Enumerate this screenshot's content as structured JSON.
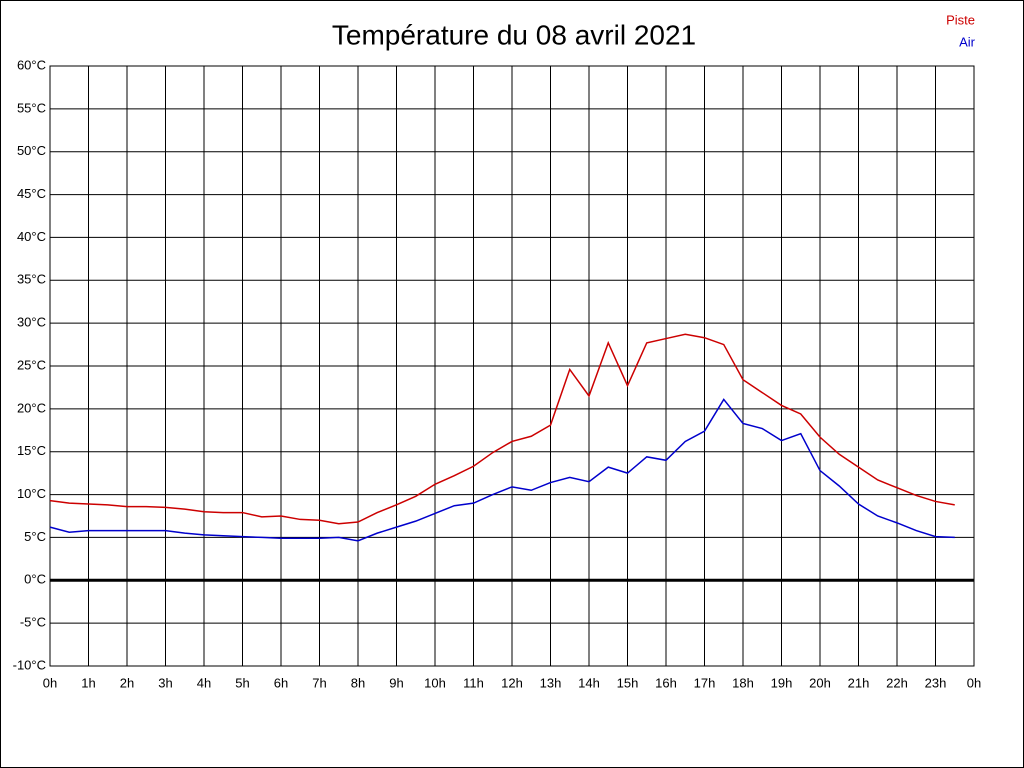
{
  "chart_data": {
    "type": "line",
    "title": "Température du 08 avril 2021",
    "x": [
      0,
      0.5,
      1,
      1.5,
      2,
      2.5,
      3,
      3.5,
      4,
      4.5,
      5,
      5.5,
      6,
      6.5,
      7,
      7.5,
      8,
      8.5,
      9,
      9.5,
      10,
      10.5,
      11,
      11.5,
      12,
      12.5,
      13,
      13.5,
      14,
      14.5,
      15,
      15.5,
      16,
      16.5,
      17,
      17.5,
      18,
      18.5,
      19,
      19.5,
      20,
      20.5,
      21,
      21.5,
      22,
      22.5,
      23,
      23.5
    ],
    "series": [
      {
        "name": "Piste",
        "color": "#cc0000",
        "values": [
          9.3,
          9.0,
          8.9,
          8.8,
          8.6,
          8.6,
          8.5,
          8.3,
          8.0,
          7.9,
          7.9,
          7.4,
          7.5,
          7.1,
          7.0,
          6.6,
          6.8,
          7.9,
          8.8,
          9.8,
          11.2,
          12.2,
          13.3,
          14.9,
          16.2,
          16.8,
          18.1,
          24.6,
          21.5,
          27.7,
          22.7,
          27.7,
          28.2,
          28.7,
          28.3,
          27.5,
          23.4,
          21.9,
          20.4,
          19.4,
          16.7,
          14.7,
          13.2,
          11.7,
          10.8,
          9.9,
          9.2,
          8.8
        ]
      },
      {
        "name": "Air",
        "color": "#0000cc",
        "values": [
          6.2,
          5.6,
          5.8,
          5.8,
          5.8,
          5.8,
          5.8,
          5.5,
          5.3,
          5.2,
          5.1,
          5.0,
          4.9,
          4.9,
          4.9,
          5.0,
          4.6,
          5.5,
          6.2,
          6.9,
          7.8,
          8.7,
          9.0,
          10.0,
          10.9,
          10.5,
          11.4,
          12.0,
          11.5,
          13.2,
          12.5,
          14.4,
          14.0,
          16.2,
          17.4,
          21.1,
          18.3,
          17.7,
          16.3,
          17.1,
          12.8,
          11.0,
          8.9,
          7.5,
          6.7,
          5.8,
          5.1,
          5.0
        ]
      }
    ],
    "xlim": [
      0,
      24
    ],
    "xticks": [
      {
        "value": 0,
        "label": "0h"
      },
      {
        "value": 1,
        "label": "1h"
      },
      {
        "value": 2,
        "label": "2h"
      },
      {
        "value": 3,
        "label": "3h"
      },
      {
        "value": 4,
        "label": "4h"
      },
      {
        "value": 5,
        "label": "5h"
      },
      {
        "value": 6,
        "label": "6h"
      },
      {
        "value": 7,
        "label": "7h"
      },
      {
        "value": 8,
        "label": "8h"
      },
      {
        "value": 9,
        "label": "9h"
      },
      {
        "value": 10,
        "label": "10h"
      },
      {
        "value": 11,
        "label": "11h"
      },
      {
        "value": 12,
        "label": "12h"
      },
      {
        "value": 13,
        "label": "13h"
      },
      {
        "value": 14,
        "label": "14h"
      },
      {
        "value": 15,
        "label": "15h"
      },
      {
        "value": 16,
        "label": "16h"
      },
      {
        "value": 17,
        "label": "17h"
      },
      {
        "value": 18,
        "label": "18h"
      },
      {
        "value": 19,
        "label": "19h"
      },
      {
        "value": 20,
        "label": "20h"
      },
      {
        "value": 21,
        "label": "21h"
      },
      {
        "value": 22,
        "label": "22h"
      },
      {
        "value": 23,
        "label": "23h"
      },
      {
        "value": 24,
        "label": "0h"
      }
    ],
    "ylim": [
      -10,
      60
    ],
    "yticks": [
      {
        "value": -10,
        "label": "-10°C"
      },
      {
        "value": -5,
        "label": "-5°C"
      },
      {
        "value": 0,
        "label": "0°C"
      },
      {
        "value": 5,
        "label": "5°C"
      },
      {
        "value": 10,
        "label": "10°C"
      },
      {
        "value": 15,
        "label": "15°C"
      },
      {
        "value": 20,
        "label": "20°C"
      },
      {
        "value": 25,
        "label": "25°C"
      },
      {
        "value": 30,
        "label": "30°C"
      },
      {
        "value": 35,
        "label": "35°C"
      },
      {
        "value": 40,
        "label": "40°C"
      },
      {
        "value": 45,
        "label": "45°C"
      },
      {
        "value": 50,
        "label": "50°C"
      },
      {
        "value": 55,
        "label": "55°C"
      },
      {
        "value": 60,
        "label": "60°C"
      }
    ],
    "grid": true,
    "legend": "top-right"
  }
}
